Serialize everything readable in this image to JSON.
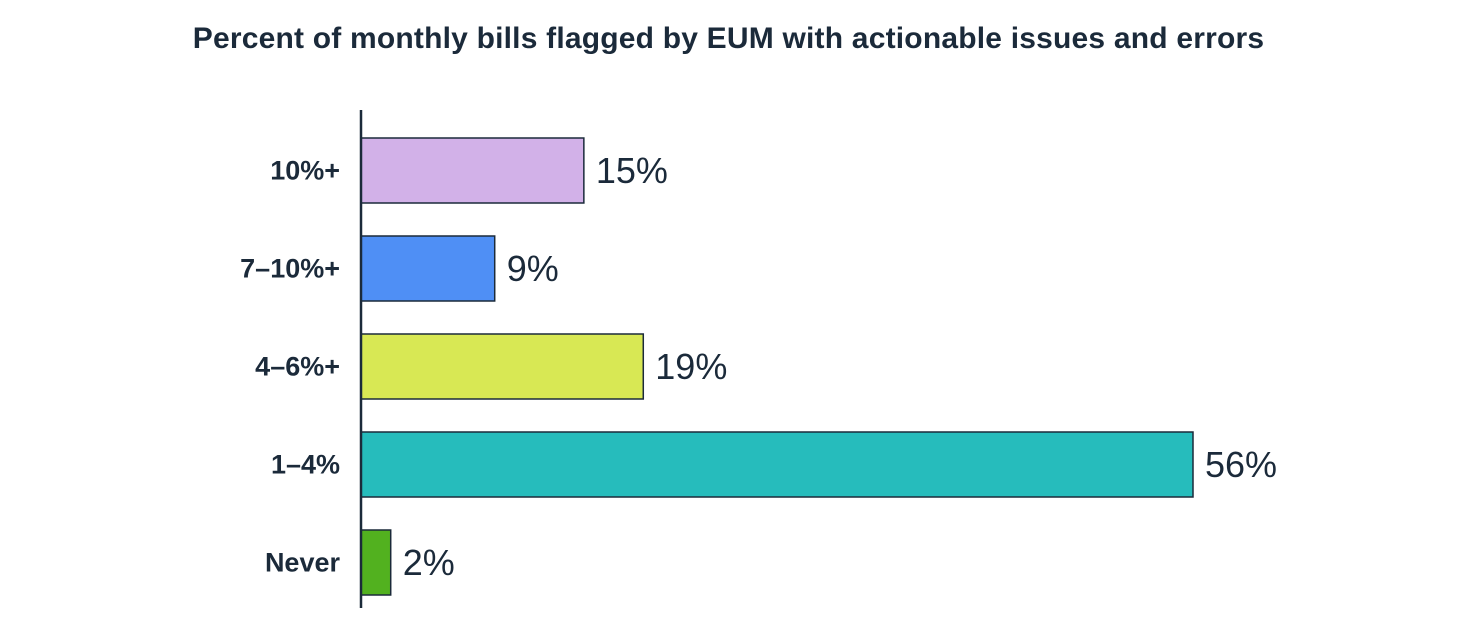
{
  "chart_data": {
    "type": "bar",
    "orientation": "horizontal",
    "title": "Percent of monthly bills flagged by EUM with actionable issues and errors",
    "xlabel": "",
    "ylabel": "",
    "categories": [
      "10%+",
      "7–10%+",
      "4–6%+",
      "1–4%",
      "Never"
    ],
    "values": [
      15,
      9,
      19,
      56,
      2
    ],
    "data_labels": [
      "15%",
      "9%",
      "19%",
      "56%",
      "2%"
    ],
    "colors": [
      "#d2b1e8",
      "#4f8ff5",
      "#d8e854",
      "#26bcbc",
      "#52b11f"
    ],
    "xlim": [
      0,
      56
    ],
    "grid": false,
    "legend": "none"
  }
}
